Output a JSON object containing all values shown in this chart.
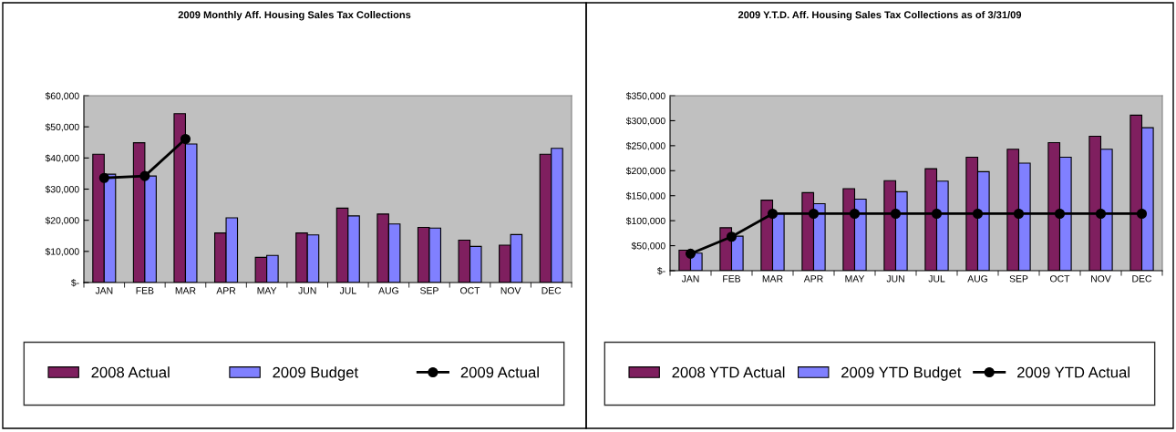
{
  "chart_data": [
    {
      "type": "bar",
      "title": "2009 Monthly Aff. Housing Sales Tax Collections",
      "categories": [
        "JAN",
        "FEB",
        "MAR",
        "APR",
        "MAY",
        "JUN",
        "JUL",
        "AUG",
        "SEP",
        "OCT",
        "NOV",
        "DEC"
      ],
      "series": [
        {
          "name": "2008 Actual",
          "color": "#7f1f5f",
          "values": [
            41200,
            44900,
            54200,
            15900,
            8100,
            15900,
            23900,
            22000,
            17700,
            13600,
            12000,
            41200
          ]
        },
        {
          "name": "2009 Budget",
          "color": "#8080ff",
          "values": [
            34800,
            34200,
            44500,
            20800,
            8700,
            15300,
            21400,
            18800,
            17500,
            11600,
            15400,
            43100
          ]
        },
        {
          "name": "2009 Actual",
          "type": "line",
          "color": "#000000",
          "values": [
            33600,
            34200,
            46100,
            null,
            null,
            null,
            null,
            null,
            null,
            null,
            null,
            null
          ]
        }
      ],
      "ylim": [
        0,
        60000
      ],
      "yticks": [
        {
          "value": 0,
          "label": "$-"
        },
        {
          "value": 10000,
          "label": "$10,000"
        },
        {
          "value": 20000,
          "label": "$20,000"
        },
        {
          "value": 30000,
          "label": "$30,000"
        },
        {
          "value": 40000,
          "label": "$40,000"
        },
        {
          "value": 50000,
          "label": "$50,000"
        },
        {
          "value": 60000,
          "label": "$60,000"
        }
      ],
      "grid": false,
      "legend": "bottom",
      "marker": "circle",
      "line_style": "solid"
    },
    {
      "type": "bar",
      "title": "2009 Y.T.D. Aff. Housing Sales Tax Collections as of 3/31/09",
      "categories": [
        "JAN",
        "FEB",
        "MAR",
        "APR",
        "MAY",
        "JUN",
        "JUL",
        "AUG",
        "SEP",
        "OCT",
        "NOV",
        "DEC"
      ],
      "series": [
        {
          "name": "2008 YTD Actual",
          "color": "#7f1f5f",
          "values": [
            41000,
            86000,
            141000,
            156000,
            164000,
            180000,
            204000,
            227000,
            243000,
            256000,
            269000,
            311000
          ]
        },
        {
          "name": "2009 YTD Budget",
          "color": "#8080ff",
          "values": [
            35000,
            69000,
            114000,
            134000,
            143000,
            158000,
            179000,
            198000,
            215000,
            227000,
            243000,
            286000
          ]
        },
        {
          "name": "2009 YTD Actual",
          "type": "line",
          "color": "#000000",
          "values": [
            34000,
            68000,
            114000,
            114000,
            114000,
            114000,
            114000,
            114000,
            114000,
            114000,
            114000,
            114000
          ]
        }
      ],
      "ylim": [
        0,
        350000
      ],
      "yticks": [
        {
          "value": 0,
          "label": "$-"
        },
        {
          "value": 50000,
          "label": "$50,000"
        },
        {
          "value": 100000,
          "label": "$100,000"
        },
        {
          "value": 150000,
          "label": "$150,000"
        },
        {
          "value": 200000,
          "label": "$200,000"
        },
        {
          "value": 250000,
          "label": "$250,000"
        },
        {
          "value": 300000,
          "label": "$300,000"
        },
        {
          "value": 350000,
          "label": "$350,000"
        }
      ],
      "grid": false,
      "legend": "bottom",
      "marker": "circle",
      "line_style": "solid"
    }
  ]
}
